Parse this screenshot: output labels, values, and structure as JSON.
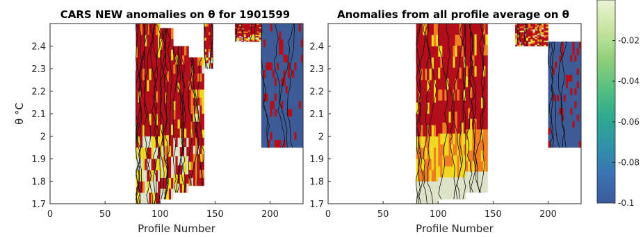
{
  "chart_data": [
    {
      "type": "heatmap",
      "title": "CARS NEW anomalies on θ for 1901599",
      "xlabel": "Profile Number",
      "ylabel": "θ °C",
      "xlim": [
        0,
        230
      ],
      "ylim": [
        1.7,
        2.5
      ],
      "xticks": [
        "0",
        "50",
        "100",
        "150",
        "200"
      ],
      "yticks": [
        "1.7",
        "1.8",
        "1.9",
        "2",
        "2.1",
        "2.2",
        "2.3",
        "2.4"
      ],
      "grid": false,
      "columns": [
        {
          "x": [
            78,
            86
          ],
          "y": [
            1.7,
            2.5
          ],
          "level": "high"
        },
        {
          "x": [
            86,
            100
          ],
          "y": [
            1.7,
            2.5
          ],
          "level": "high"
        },
        {
          "x": [
            100,
            112
          ],
          "y": [
            1.72,
            2.48
          ],
          "level": "high"
        },
        {
          "x": [
            112,
            126
          ],
          "y": [
            1.75,
            2.4
          ],
          "level": "high"
        },
        {
          "x": [
            126,
            140
          ],
          "y": [
            1.78,
            2.35
          ],
          "level": "mixed"
        },
        {
          "x": [
            140,
            148
          ],
          "y": [
            2.3,
            2.5
          ],
          "level": "high"
        },
        {
          "x": [
            168,
            192
          ],
          "y": [
            2.42,
            2.5
          ],
          "level": "high"
        },
        {
          "x": [
            192,
            230
          ],
          "y": [
            1.95,
            2.5
          ],
          "level": "low"
        }
      ]
    },
    {
      "type": "heatmap",
      "title": "Anomalies from all profile average on θ",
      "xlabel": "Profile Number",
      "ylabel": "",
      "xlim": [
        0,
        230
      ],
      "ylim": [
        1.7,
        2.5
      ],
      "xticks": [
        "0",
        "50",
        "100",
        "150",
        "200"
      ],
      "yticks": [
        "1.7",
        "1.8",
        "1.9",
        "2",
        "2.1",
        "2.2",
        "2.3",
        "2.4"
      ],
      "grid": false,
      "columns": [
        {
          "x": [
            80,
            100
          ],
          "y": [
            1.7,
            2.5
          ],
          "level": "high"
        },
        {
          "x": [
            100,
            125
          ],
          "y": [
            1.72,
            2.5
          ],
          "level": "high"
        },
        {
          "x": [
            125,
            145
          ],
          "y": [
            1.75,
            2.5
          ],
          "level": "high"
        },
        {
          "x": [
            170,
            200
          ],
          "y": [
            2.4,
            2.5
          ],
          "level": "mixed"
        },
        {
          "x": [
            200,
            230
          ],
          "y": [
            1.95,
            2.42
          ],
          "level": "low"
        }
      ]
    }
  ],
  "colorbar": {
    "ticks": [
      "-0.02",
      "-0.04",
      "-0.06",
      "-0.08",
      "-0.1"
    ],
    "tick_values": [
      -0.02,
      -0.04,
      -0.06,
      -0.08,
      -0.1
    ],
    "range": [
      -0.1,
      0
    ],
    "colormap": [
      "#3b5a9a",
      "#3a73b3",
      "#2f92a8",
      "#2fab8f",
      "#59c080",
      "#92d17a",
      "#c9e5a2",
      "#eaf3d4"
    ]
  },
  "colors": {
    "high": "#b40e1a",
    "orange": "#f07d20",
    "yellow": "#f0d820",
    "pale": "#dde3c8",
    "low": "#3d5b96"
  }
}
